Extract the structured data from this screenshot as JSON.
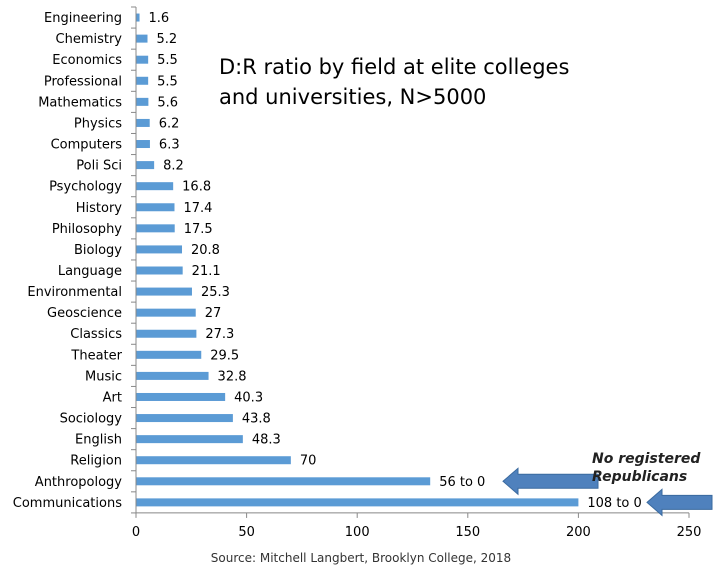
{
  "chart_data": {
    "type": "bar",
    "orientation": "horizontal",
    "title_lines": [
      "D:R ratio by field at elite colleges",
      "and universities, N>5000"
    ],
    "source": "Source: Mitchell Langbert, Brooklyn College, 2018",
    "annotation_lines": [
      "No registered",
      "Republicans"
    ],
    "xlim": [
      0,
      250
    ],
    "xticks": [
      0,
      50,
      100,
      150,
      200,
      250
    ],
    "grid": false,
    "bar_color": "#5b9bd5",
    "arrow_color": "#4f81bd",
    "categories": [
      "Engineering",
      "Chemistry",
      "Economics",
      "Professional",
      "Mathematics",
      "Physics",
      "Computers",
      "Poli Sci",
      "Psychology",
      "History",
      "Philosophy",
      "Biology",
      "Language",
      "Environmental",
      "Geoscience",
      "Classics",
      "Theater",
      "Music",
      "Art",
      "Sociology",
      "English",
      "Religion",
      "Anthropology",
      "Communications"
    ],
    "values": [
      1.6,
      5.2,
      5.5,
      5.5,
      5.6,
      6.2,
      6.3,
      8.2,
      16.8,
      17.4,
      17.5,
      20.8,
      21.1,
      25.3,
      27,
      27.3,
      29.5,
      32.8,
      40.3,
      43.8,
      48.3,
      70,
      133,
      200
    ],
    "value_labels": [
      "1.6",
      "5.2",
      "5.5",
      "5.5",
      "5.6",
      "6.2",
      "6.3",
      "8.2",
      "16.8",
      "17.4",
      "17.5",
      "20.8",
      "21.1",
      "25.3",
      "27",
      "27.3",
      "29.5",
      "32.8",
      "40.3",
      "43.8",
      "48.3",
      "70",
      "56 to 0",
      "108 to 0"
    ],
    "arrow_rows": [
      22,
      23
    ]
  }
}
